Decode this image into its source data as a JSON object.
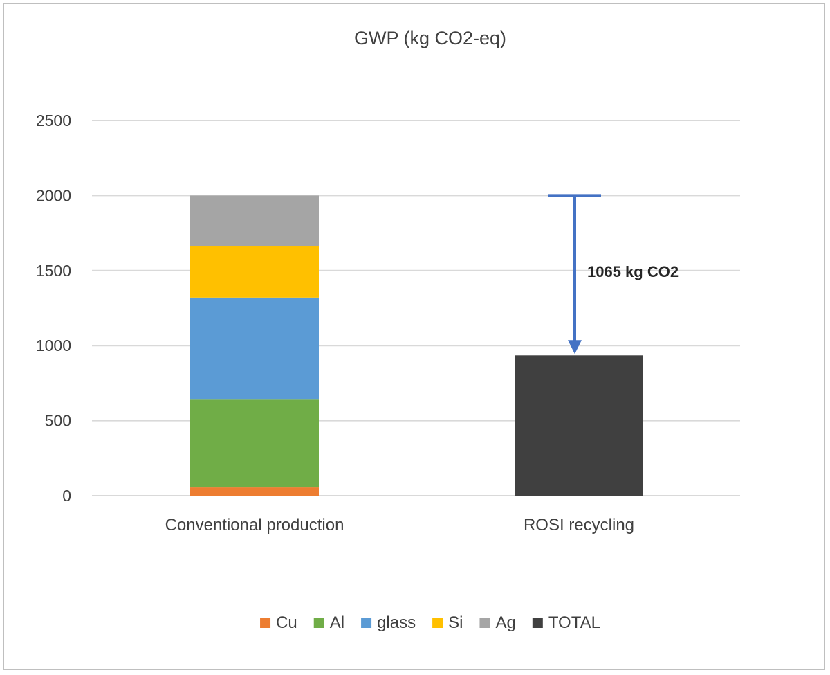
{
  "chart_data": {
    "type": "bar",
    "stacked": true,
    "title": "GWP (kg CO2-eq)",
    "xlabel": "",
    "ylabel": "",
    "ylim": [
      0,
      2500
    ],
    "yticks": [
      "0",
      "500",
      "1000",
      "1500",
      "2000",
      "2500"
    ],
    "grid": true,
    "legend_position": "bottom",
    "categories": [
      "Conventional production",
      "ROSI recycling"
    ],
    "series": [
      {
        "name": "Cu",
        "color": "#ED7D31",
        "values": [
          55,
          0
        ]
      },
      {
        "name": "Al",
        "color": "#70AD47",
        "values": [
          585,
          0
        ]
      },
      {
        "name": "glass",
        "color": "#5B9BD5",
        "values": [
          680,
          0
        ]
      },
      {
        "name": "Si",
        "color": "#FFC000",
        "values": [
          345,
          0
        ]
      },
      {
        "name": "Ag",
        "color": "#A5A5A5",
        "values": [
          335,
          0
        ]
      },
      {
        "name": "TOTAL",
        "color": "#404040",
        "values": [
          0,
          935
        ]
      }
    ],
    "annotation": {
      "text": "1065 kg CO2",
      "from_value": 2000,
      "to_value": 935,
      "category": "ROSI recycling",
      "color": "#4472C4"
    }
  }
}
